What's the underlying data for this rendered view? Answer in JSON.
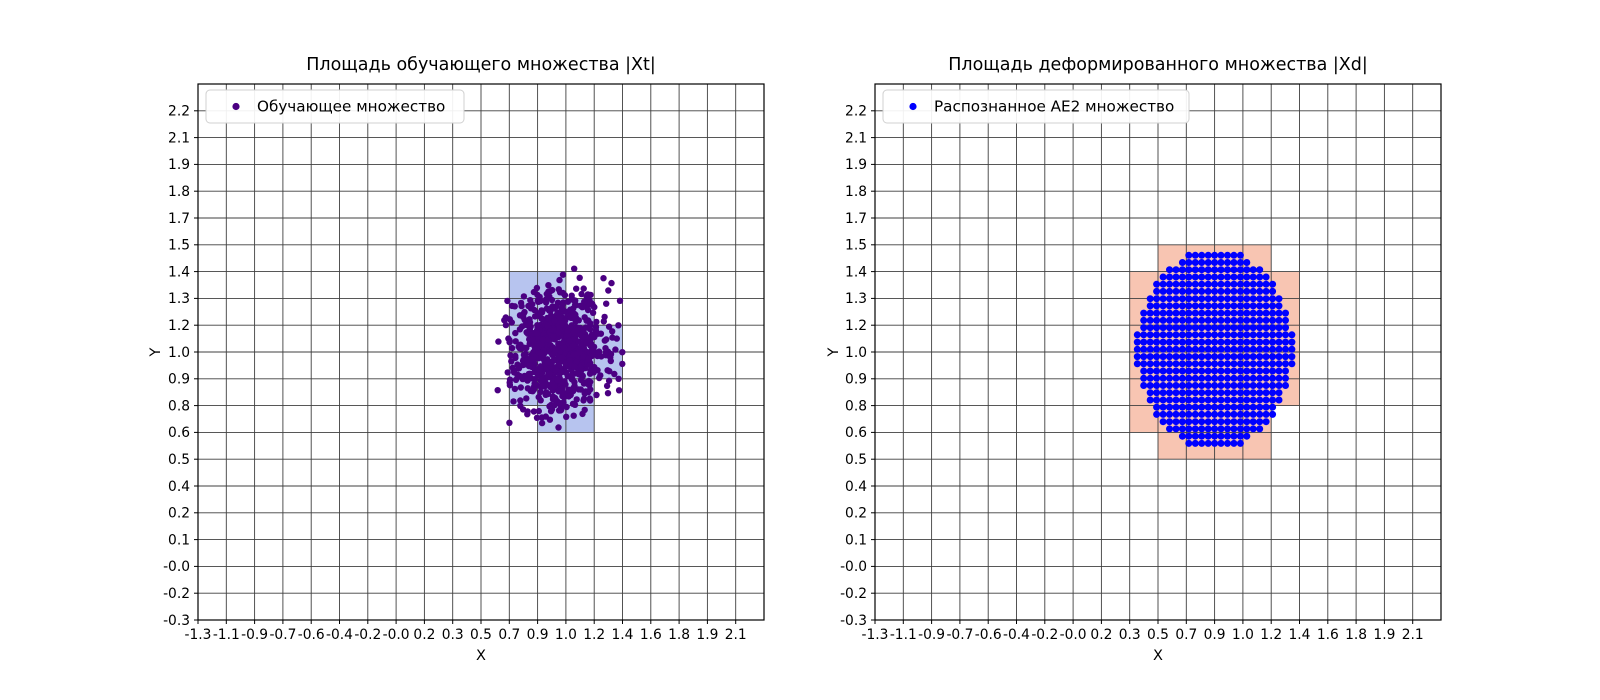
{
  "figure": {
    "background": "#ffffff"
  },
  "chart_data": [
    {
      "type": "scatter",
      "title": "Площадь обучающего множества |Xt|",
      "xlabel": "X",
      "ylabel": "Y",
      "legend": {
        "label": "Обучающее множество",
        "position": "upper left"
      },
      "grid": true,
      "x_tick_labels": [
        "-1.3",
        "-1.1",
        "-0.9",
        "-0.7",
        "-0.6",
        "-0.4",
        "-0.2",
        "-0.0",
        "0.2",
        "0.3",
        "0.5",
        "0.7",
        "0.9",
        "1.0",
        "1.2",
        "1.4",
        "1.6",
        "1.8",
        "1.9",
        "2.1"
      ],
      "y_tick_labels": [
        "-0.3",
        "-0.2",
        "-0.0",
        "0.1",
        "0.2",
        "0.4",
        "0.5",
        "0.6",
        "0.8",
        "0.9",
        "1.0",
        "1.2",
        "1.3",
        "1.4",
        "1.5",
        "1.7",
        "1.8",
        "1.9",
        "2.1",
        "2.2"
      ],
      "point_color": "#4b0082",
      "shade_color": "#b7c4ef",
      "shaded_rows": [
        {
          "y": [
            "1.3",
            "1.4"
          ],
          "x": [
            "0.7",
            "1.0"
          ]
        },
        {
          "y": [
            "1.2",
            "1.3"
          ],
          "x": [
            "0.7",
            "1.2"
          ]
        },
        {
          "y": [
            "1.0",
            "1.2"
          ],
          "x": [
            "0.7",
            "1.4"
          ]
        },
        {
          "y": [
            "0.9",
            "1.0"
          ],
          "x": [
            "0.7",
            "1.4"
          ]
        },
        {
          "y": [
            "0.8",
            "0.9"
          ],
          "x": [
            "0.7",
            "1.2"
          ]
        },
        {
          "y": [
            "0.6",
            "0.8"
          ],
          "x": [
            "0.9",
            "1.2"
          ]
        }
      ],
      "points": {
        "kind": "gaussian_cluster",
        "approx_center_data": [
          1.0,
          1.0
        ],
        "center_ticks": [
          12.8,
          10.1
        ],
        "sigma_cells": [
          0.85,
          1.15
        ],
        "max_offset_cells": [
          2.3,
          3.3
        ],
        "n": 800,
        "dot_radius_px": 3.2,
        "seed": 7
      }
    },
    {
      "type": "scatter",
      "title": "Площадь деформированного множества |Xd|",
      "xlabel": "X",
      "ylabel": "Y",
      "legend": {
        "label": "Распознанное AE2 множество",
        "position": "upper left"
      },
      "grid": true,
      "x_tick_labels": [
        "-1.3",
        "-1.1",
        "-0.9",
        "-0.7",
        "-0.6",
        "-0.4",
        "-0.2",
        "-0.0",
        "0.2",
        "0.3",
        "0.5",
        "0.7",
        "0.9",
        "1.0",
        "1.2",
        "1.4",
        "1.6",
        "1.8",
        "1.9",
        "2.1"
      ],
      "y_tick_labels": [
        "-0.3",
        "-0.2",
        "-0.0",
        "0.1",
        "0.2",
        "0.4",
        "0.5",
        "0.6",
        "0.8",
        "0.9",
        "1.0",
        "1.2",
        "1.3",
        "1.4",
        "1.5",
        "1.7",
        "1.8",
        "1.9",
        "2.1",
        "2.2"
      ],
      "point_color": "#0000ff",
      "shade_color": "#f8c5b2",
      "shaded_rows": [
        {
          "y": [
            "1.4",
            "1.5"
          ],
          "x": [
            "0.5",
            "1.2"
          ]
        },
        {
          "y": [
            "1.3",
            "1.4"
          ],
          "x": [
            "0.3",
            "1.4"
          ]
        },
        {
          "y": [
            "1.2",
            "1.3"
          ],
          "x": [
            "0.3",
            "1.4"
          ]
        },
        {
          "y": [
            "1.0",
            "1.2"
          ],
          "x": [
            "0.3",
            "1.4"
          ]
        },
        {
          "y": [
            "0.9",
            "1.0"
          ],
          "x": [
            "0.3",
            "1.4"
          ]
        },
        {
          "y": [
            "0.8",
            "0.9"
          ],
          "x": [
            "0.3",
            "1.4"
          ]
        },
        {
          "y": [
            "0.6",
            "0.8"
          ],
          "x": [
            "0.3",
            "1.2"
          ]
        },
        {
          "y": [
            "0.5",
            "0.6"
          ],
          "x": [
            "0.5",
            "1.2"
          ]
        }
      ],
      "points": {
        "kind": "grid_disc",
        "approx_center_data": [
          0.9,
          1.0
        ],
        "center_ticks": [
          12.0,
          10.1
        ],
        "radius_cells": [
          2.77,
          3.72
        ],
        "step_cells": [
          0.2276,
          0.27
        ],
        "dot_radius_px": 3.5
      }
    }
  ],
  "style": {
    "grid_color": "#3f3f3f",
    "spine_color": "#000000",
    "legend_border_color": "#d0d0d0",
    "legend_bg_color": "#ffffff"
  }
}
